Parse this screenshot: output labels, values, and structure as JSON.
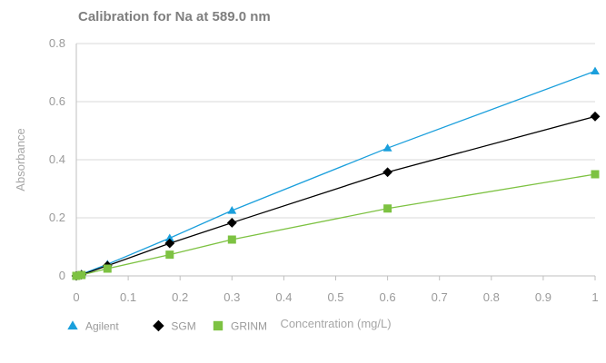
{
  "chart_data": {
    "type": "line",
    "title": "Calibration for Na at 589.0 nm",
    "xlabel": "Concentration (mg/L)",
    "ylabel": "Absorbance",
    "xlim": [
      0,
      1
    ],
    "ylim": [
      0,
      0.8
    ],
    "xticks": [
      0,
      0.1,
      0.2,
      0.3,
      0.4,
      0.5,
      0.6,
      0.7,
      0.8,
      0.9,
      1
    ],
    "xtick_labels": [
      "0",
      "0.1",
      "0.2",
      "0.3",
      "0.4",
      "0.5",
      "0.6",
      "0.7",
      "0.8",
      "0.9",
      "1"
    ],
    "yticks": [
      0,
      0.2,
      0.4,
      0.6,
      0.8
    ],
    "ytick_labels": [
      "0",
      "0.2",
      "0.4",
      "0.6",
      "0.8"
    ],
    "grid": "horizontal",
    "legend_position": "bottom-left",
    "series": [
      {
        "name": "Agilent",
        "color": "#1a9fdc",
        "marker": "triangle",
        "x": [
          0,
          0.01,
          0.06,
          0.18,
          0.3,
          0.6,
          1.0
        ],
        "y": [
          0.0,
          0.006,
          0.04,
          0.13,
          0.225,
          0.44,
          0.705
        ]
      },
      {
        "name": "SGM",
        "color": "#000000",
        "marker": "diamond",
        "x": [
          0,
          0.01,
          0.06,
          0.18,
          0.3,
          0.6,
          1.0
        ],
        "y": [
          0.0,
          0.004,
          0.035,
          0.112,
          0.183,
          0.357,
          0.549
        ]
      },
      {
        "name": "GRINM",
        "color": "#7dc242",
        "marker": "square",
        "x": [
          0,
          0.01,
          0.06,
          0.18,
          0.3,
          0.6,
          1.0
        ],
        "y": [
          0.0,
          0.003,
          0.025,
          0.073,
          0.125,
          0.232,
          0.35
        ]
      }
    ]
  }
}
